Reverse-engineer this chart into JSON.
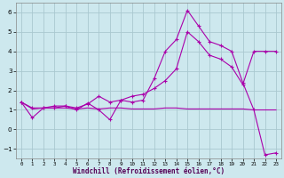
{
  "xlabel": "Windchill (Refroidissement éolien,°C)",
  "background_color": "#cde8ee",
  "grid_color": "#aac8d0",
  "line_color": "#aa00aa",
  "xlim": [
    -0.5,
    23.5
  ],
  "ylim": [
    -1.5,
    6.5
  ],
  "xticks": [
    0,
    1,
    2,
    3,
    4,
    5,
    6,
    7,
    8,
    9,
    10,
    11,
    12,
    13,
    14,
    15,
    16,
    17,
    18,
    19,
    20,
    21,
    22,
    23
  ],
  "yticks": [
    -1,
    0,
    1,
    2,
    3,
    4,
    5,
    6
  ],
  "line1_x": [
    0,
    1,
    2,
    3,
    4,
    5,
    6,
    7,
    8,
    9,
    10,
    11,
    12,
    13,
    14,
    15,
    16,
    17,
    18,
    19,
    20,
    21,
    22,
    23
  ],
  "line1_y": [
    1.4,
    0.6,
    1.1,
    1.1,
    1.2,
    1.0,
    1.35,
    1.0,
    0.5,
    1.5,
    1.4,
    1.5,
    2.6,
    4.0,
    4.6,
    6.1,
    5.3,
    4.5,
    4.3,
    4.0,
    2.4,
    1.0,
    -1.3,
    -1.2
  ],
  "line2_x": [
    0,
    1,
    2,
    3,
    4,
    5,
    6,
    7,
    8,
    9,
    10,
    11,
    12,
    13,
    14,
    15,
    16,
    17,
    18,
    19,
    20,
    21,
    22,
    23
  ],
  "line2_y": [
    1.4,
    1.1,
    1.1,
    1.2,
    1.2,
    1.1,
    1.3,
    1.7,
    1.4,
    1.5,
    1.7,
    1.8,
    2.1,
    2.5,
    3.1,
    5.0,
    4.5,
    3.8,
    3.6,
    3.2,
    2.3,
    4.0,
    4.0,
    4.0
  ],
  "line3_x": [
    0,
    1,
    2,
    3,
    4,
    5,
    6,
    7,
    8,
    9,
    10,
    11,
    12,
    13,
    14,
    15,
    16,
    17,
    18,
    19,
    20,
    21,
    22,
    23
  ],
  "line3_y": [
    1.4,
    1.05,
    1.1,
    1.1,
    1.1,
    1.05,
    1.1,
    1.05,
    1.1,
    1.1,
    1.05,
    1.05,
    1.05,
    1.1,
    1.1,
    1.05,
    1.05,
    1.05,
    1.05,
    1.05,
    1.05,
    1.0,
    1.0,
    1.0
  ],
  "xlabel_color": "#550055",
  "xlabel_fontsize": 5.5,
  "xlabel_fontweight": "bold",
  "tick_fontsize_x": 4.2,
  "tick_fontsize_y": 5.2,
  "linewidth": 0.8,
  "markersize": 2.5
}
